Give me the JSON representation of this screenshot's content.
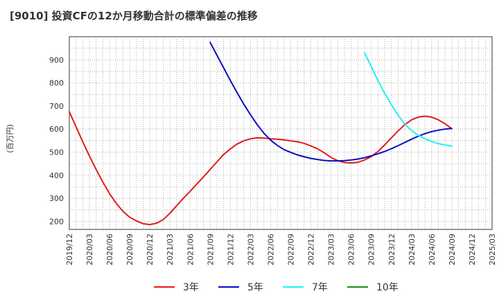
{
  "chart_data": {
    "type": "line",
    "title": "[9010]  投資CFの12か月移動合計の標準偏差の推移",
    "ylabel": "(百万円)",
    "xlabel": "",
    "x_ticks": [
      "2019/12",
      "2020/03",
      "2020/06",
      "2020/09",
      "2020/12",
      "2021/03",
      "2021/06",
      "2021/09",
      "2021/12",
      "2022/03",
      "2022/06",
      "2022/09",
      "2022/12",
      "2023/03",
      "2023/06",
      "2023/09",
      "2023/12",
      "2024/03",
      "2024/06",
      "2024/09",
      "2024/12",
      "2025/03"
    ],
    "y_ticks": [
      200,
      300,
      400,
      500,
      600,
      700,
      800,
      900
    ],
    "xlim": [
      "2019/12",
      "2025/03"
    ],
    "ylim": [
      165,
      1000
    ],
    "grid": true,
    "legend_position": "bottom",
    "series": [
      {
        "name": "3年",
        "color": "#e31a1c",
        "points": [
          [
            "2019/12",
            675
          ],
          [
            "2020/01",
            610
          ],
          [
            "2020/02",
            545
          ],
          [
            "2020/03",
            483
          ],
          [
            "2020/04",
            425
          ],
          [
            "2020/05",
            370
          ],
          [
            "2020/06",
            320
          ],
          [
            "2020/07",
            278
          ],
          [
            "2020/08",
            243
          ],
          [
            "2020/09",
            218
          ],
          [
            "2020/10",
            202
          ],
          [
            "2020/11",
            190
          ],
          [
            "2020/12",
            186
          ],
          [
            "2021/01",
            192
          ],
          [
            "2021/02",
            208
          ],
          [
            "2021/03",
            235
          ],
          [
            "2021/04",
            268
          ],
          [
            "2021/05",
            300
          ],
          [
            "2021/06",
            330
          ],
          [
            "2021/07",
            362
          ],
          [
            "2021/08",
            393
          ],
          [
            "2021/09",
            425
          ],
          [
            "2021/10",
            458
          ],
          [
            "2021/11",
            490
          ],
          [
            "2021/12",
            514
          ],
          [
            "2022/01",
            535
          ],
          [
            "2022/02",
            549
          ],
          [
            "2022/03",
            558
          ],
          [
            "2022/04",
            562
          ],
          [
            "2022/05",
            561
          ],
          [
            "2022/06",
            558
          ],
          [
            "2022/07",
            556
          ],
          [
            "2022/08",
            553
          ],
          [
            "2022/09",
            549
          ],
          [
            "2022/10",
            545
          ],
          [
            "2022/11",
            538
          ],
          [
            "2022/12",
            527
          ],
          [
            "2023/01",
            514
          ],
          [
            "2023/02",
            497
          ],
          [
            "2023/03",
            477
          ],
          [
            "2023/04",
            463
          ],
          [
            "2023/05",
            455
          ],
          [
            "2023/06",
            453
          ],
          [
            "2023/07",
            456
          ],
          [
            "2023/08",
            466
          ],
          [
            "2023/09",
            481
          ],
          [
            "2023/10",
            503
          ],
          [
            "2023/11",
            531
          ],
          [
            "2023/12",
            562
          ],
          [
            "2024/01",
            592
          ],
          [
            "2024/02",
            619
          ],
          [
            "2024/03",
            640
          ],
          [
            "2024/04",
            652
          ],
          [
            "2024/05",
            656
          ],
          [
            "2024/06",
            652
          ],
          [
            "2024/07",
            640
          ],
          [
            "2024/08",
            623
          ],
          [
            "2024/09",
            601
          ]
        ]
      },
      {
        "name": "5年",
        "color": "#0b0bbf",
        "points": [
          [
            "2021/09",
            975
          ],
          [
            "2021/10",
            920
          ],
          [
            "2021/11",
            865
          ],
          [
            "2021/12",
            810
          ],
          [
            "2022/01",
            758
          ],
          [
            "2022/02",
            708
          ],
          [
            "2022/03",
            662
          ],
          [
            "2022/04",
            619
          ],
          [
            "2022/05",
            582
          ],
          [
            "2022/06",
            552
          ],
          [
            "2022/07",
            529
          ],
          [
            "2022/08",
            511
          ],
          [
            "2022/09",
            499
          ],
          [
            "2022/10",
            488
          ],
          [
            "2022/11",
            480
          ],
          [
            "2022/12",
            473
          ],
          [
            "2023/01",
            468
          ],
          [
            "2023/02",
            464
          ],
          [
            "2023/03",
            462
          ],
          [
            "2023/04",
            462
          ],
          [
            "2023/05",
            463
          ],
          [
            "2023/06",
            466
          ],
          [
            "2023/07",
            470
          ],
          [
            "2023/08",
            476
          ],
          [
            "2023/09",
            484
          ],
          [
            "2023/10",
            493
          ],
          [
            "2023/11",
            503
          ],
          [
            "2023/12",
            515
          ],
          [
            "2024/01",
            528
          ],
          [
            "2024/02",
            542
          ],
          [
            "2024/03",
            556
          ],
          [
            "2024/04",
            569
          ],
          [
            "2024/05",
            580
          ],
          [
            "2024/06",
            589
          ],
          [
            "2024/07",
            595
          ],
          [
            "2024/08",
            600
          ],
          [
            "2024/09",
            603
          ]
        ]
      },
      {
        "name": "7年",
        "color": "#1ff0f0",
        "points": [
          [
            "2023/08",
            930
          ],
          [
            "2023/09",
            870
          ],
          [
            "2023/10",
            810
          ],
          [
            "2023/11",
            755
          ],
          [
            "2023/12",
            705
          ],
          [
            "2024/01",
            660
          ],
          [
            "2024/02",
            622
          ],
          [
            "2024/03",
            594
          ],
          [
            "2024/04",
            573
          ],
          [
            "2024/05",
            558
          ],
          [
            "2024/06",
            546
          ],
          [
            "2024/07",
            537
          ],
          [
            "2024/08",
            531
          ],
          [
            "2024/09",
            527
          ]
        ]
      },
      {
        "name": "10年",
        "color": "#1a8a1a",
        "points": []
      }
    ]
  }
}
